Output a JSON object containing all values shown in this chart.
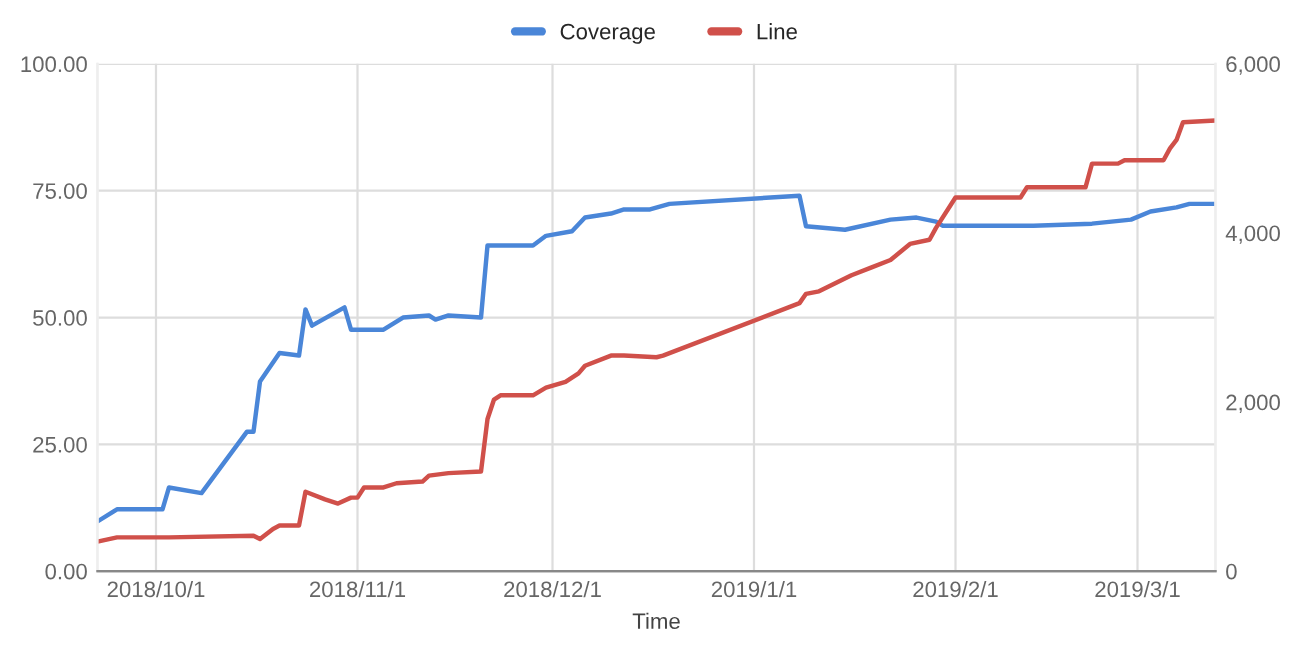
{
  "chart_data": {
    "type": "line",
    "xlabel": "Time",
    "legend": "top",
    "grid": true,
    "line_style": "solid",
    "marker": "none",
    "xlim": [
      "2018-09-22",
      "2019-03-13"
    ],
    "xticks": [
      {
        "value": "2018-10-01",
        "label": "2018/10/1"
      },
      {
        "value": "2018-11-01",
        "label": "2018/11/1"
      },
      {
        "value": "2018-12-01",
        "label": "2018/12/1"
      },
      {
        "value": "2019-01-01",
        "label": "2019/1/1"
      },
      {
        "value": "2019-02-01",
        "label": "2019/2/1"
      },
      {
        "value": "2019-03-01",
        "label": "2019/3/1"
      }
    ],
    "ylim": [
      0,
      100
    ],
    "yticks": [
      {
        "value": 0,
        "label": "0.00"
      },
      {
        "value": 25,
        "label": "25.00"
      },
      {
        "value": 50,
        "label": "50.00"
      },
      {
        "value": 75,
        "label": "75.00"
      },
      {
        "value": 100,
        "label": "100.00"
      }
    ],
    "y2lim": [
      0,
      6000
    ],
    "y2ticks": [
      {
        "value": 0,
        "label": "0"
      },
      {
        "value": 2000,
        "label": "2,000"
      },
      {
        "value": 4000,
        "label": "4,000"
      },
      {
        "value": 6000,
        "label": "6,000"
      }
    ],
    "series": [
      {
        "name": "Coverage",
        "color": "#4a86d8",
        "x": [
          "2018-09-22",
          "2018-09-25",
          "2018-10-02",
          "2018-10-03",
          "2018-10-08",
          "2018-10-15",
          "2018-10-16",
          "2018-10-17",
          "2018-10-20",
          "2018-10-23",
          "2018-10-24",
          "2018-10-25",
          "2018-10-30",
          "2018-10-31",
          "2018-11-05",
          "2018-11-08",
          "2018-11-12",
          "2018-11-13",
          "2018-11-15",
          "2018-11-20",
          "2018-11-21",
          "2018-11-28",
          "2018-11-30",
          "2018-12-04",
          "2018-12-06",
          "2018-12-10",
          "2018-12-12",
          "2018-12-16",
          "2018-12-19",
          "2019-01-08",
          "2019-01-09",
          "2019-01-15",
          "2019-01-22",
          "2019-01-26",
          "2019-01-29",
          "2019-01-30",
          "2019-02-13",
          "2019-02-22",
          "2019-02-28",
          "2019-03-03",
          "2019-03-07",
          "2019-03-09",
          "2019-03-13"
        ],
        "values": [
          9.8,
          12.2,
          12.2,
          16.5,
          15.4,
          27.5,
          27.5,
          37.4,
          43,
          42.5,
          51.6,
          48.4,
          52,
          47.6,
          47.6,
          50,
          50.4,
          49.6,
          50.4,
          50,
          64.2,
          64.2,
          66.1,
          67,
          69.7,
          70.5,
          71.3,
          71.3,
          72.4,
          74,
          68,
          67.3,
          69.3,
          69.7,
          68.9,
          68.1,
          68.1,
          68.5,
          69.3,
          70.9,
          71.7,
          72.4,
          72.4
        ]
      },
      {
        "name": "Line",
        "color": "#d0504a",
        "axis": "y2",
        "x": [
          "2018-09-22",
          "2018-09-25",
          "2018-10-03",
          "2018-10-16",
          "2018-10-17",
          "2018-10-19",
          "2018-10-20",
          "2018-10-23",
          "2018-10-24",
          "2018-10-27",
          "2018-10-29",
          "2018-10-31",
          "2018-11-01",
          "2018-11-02",
          "2018-11-05",
          "2018-11-07",
          "2018-11-11",
          "2018-11-12",
          "2018-11-15",
          "2018-11-20",
          "2018-11-21",
          "2018-11-22",
          "2018-11-23",
          "2018-11-28",
          "2018-11-30",
          "2018-12-03",
          "2018-12-05",
          "2018-12-06",
          "2018-12-10",
          "2018-12-12",
          "2018-12-17",
          "2018-12-18",
          "2019-01-08",
          "2019-01-09",
          "2019-01-11",
          "2019-01-16",
          "2019-01-19",
          "2019-01-22",
          "2019-01-25",
          "2019-01-28",
          "2019-01-29",
          "2019-02-01",
          "2019-02-11",
          "2019-02-12",
          "2019-02-21",
          "2019-02-22",
          "2019-02-26",
          "2019-02-27",
          "2019-03-05",
          "2019-03-06",
          "2019-03-07",
          "2019-03-08",
          "2019-03-13"
        ],
        "values": [
          350,
          400,
          400,
          420,
          380,
          500,
          540,
          540,
          940,
          850,
          800,
          870,
          870,
          990,
          990,
          1040,
          1060,
          1130,
          1160,
          1180,
          1800,
          2030,
          2080,
          2080,
          2170,
          2240,
          2340,
          2430,
          2550,
          2550,
          2530,
          2550,
          3170,
          3280,
          3310,
          3500,
          3590,
          3680,
          3870,
          3920,
          4060,
          4420,
          4420,
          4540,
          4540,
          4820,
          4820,
          4860,
          4860,
          5000,
          5100,
          5310,
          5330
        ]
      }
    ]
  }
}
